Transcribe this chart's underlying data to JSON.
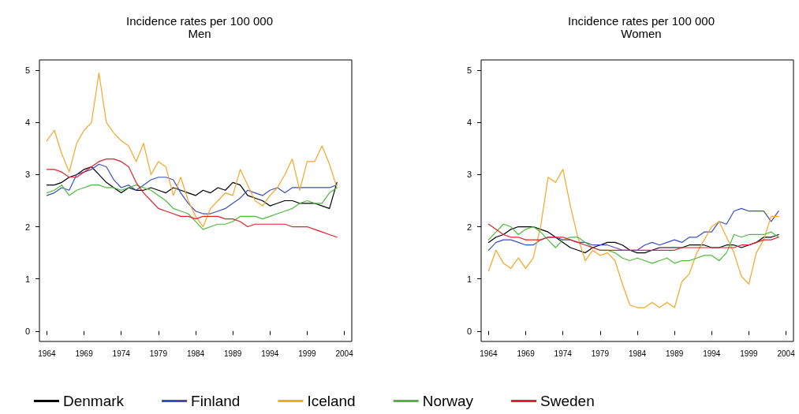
{
  "chart_data": [
    {
      "type": "line",
      "title": "Incidence rates per 100 000",
      "subtitle": "Men",
      "x": [
        1964,
        1965,
        1966,
        1967,
        1968,
        1969,
        1970,
        1971,
        1972,
        1973,
        1974,
        1975,
        1976,
        1977,
        1978,
        1979,
        1980,
        1981,
        1982,
        1983,
        1984,
        1985,
        1986,
        1987,
        1988,
        1989,
        1990,
        1991,
        1992,
        1993,
        1994,
        1995,
        1996,
        1997,
        1998,
        1999,
        2000,
        2001,
        2002,
        2003
      ],
      "xlim": [
        1963,
        2005
      ],
      "xticks": [
        1964,
        1969,
        1974,
        1979,
        1984,
        1989,
        1994,
        1999,
        2004
      ],
      "ylim": [
        -0.2,
        5.2
      ],
      "yticks": [
        0,
        1,
        2,
        3,
        4,
        5
      ],
      "grid": false,
      "marker": "none",
      "line_style": "solid",
      "legend": "bottom",
      "series": [
        {
          "name": "Denmark",
          "color": "#000000",
          "values": [
            2.8,
            2.8,
            2.85,
            2.95,
            3.0,
            3.1,
            3.15,
            3.0,
            2.85,
            2.75,
            2.65,
            2.75,
            2.7,
            2.7,
            2.75,
            2.7,
            2.65,
            2.75,
            2.7,
            2.65,
            2.6,
            2.7,
            2.65,
            2.75,
            2.7,
            2.85,
            2.8,
            2.6,
            2.55,
            2.5,
            2.4,
            2.45,
            2.5,
            2.5,
            2.45,
            2.45,
            2.45,
            2.4,
            2.35,
            2.85
          ]
        },
        {
          "name": "Finland",
          "color": "#3a4fbf",
          "values": [
            2.6,
            2.65,
            2.75,
            2.7,
            3.0,
            3.05,
            3.1,
            3.2,
            3.15,
            2.9,
            2.75,
            2.8,
            2.7,
            2.8,
            2.9,
            2.95,
            2.95,
            2.9,
            2.65,
            2.45,
            2.3,
            2.25,
            2.25,
            2.3,
            2.35,
            2.45,
            2.55,
            2.7,
            2.65,
            2.6,
            2.7,
            2.75,
            2.65,
            2.75,
            2.75,
            2.75,
            2.75,
            2.75,
            2.75,
            2.8
          ]
        },
        {
          "name": "Iceland",
          "color": "#f5a623",
          "values": [
            3.65,
            3.85,
            3.4,
            3.05,
            3.6,
            3.85,
            4.0,
            4.95,
            4.0,
            3.8,
            3.65,
            3.55,
            3.25,
            3.6,
            3.0,
            3.25,
            3.15,
            2.6,
            2.95,
            2.5,
            2.2,
            2.0,
            2.35,
            2.5,
            2.65,
            2.6,
            3.1,
            2.8,
            2.5,
            2.4,
            2.6,
            2.75,
            3.0,
            3.3,
            2.7,
            3.25,
            3.25,
            3.55,
            3.2,
            2.75
          ]
        },
        {
          "name": "Norway",
          "color": "#4cbb3a",
          "values": [
            2.65,
            2.7,
            2.8,
            2.6,
            2.7,
            2.75,
            2.8,
            2.8,
            2.75,
            2.75,
            2.7,
            2.75,
            2.8,
            2.75,
            2.7,
            2.6,
            2.5,
            2.35,
            2.3,
            2.25,
            2.1,
            1.95,
            2.0,
            2.05,
            2.05,
            2.1,
            2.2,
            2.2,
            2.2,
            2.15,
            2.2,
            2.25,
            2.3,
            2.35,
            2.45,
            2.5,
            2.45,
            2.45,
            2.65,
            2.75
          ]
        },
        {
          "name": "Sweden",
          "color": "#e8202a",
          "values": [
            3.1,
            3.1,
            3.05,
            2.95,
            2.95,
            3.05,
            3.15,
            3.25,
            3.3,
            3.3,
            3.25,
            3.15,
            2.85,
            2.65,
            2.5,
            2.35,
            2.3,
            2.25,
            2.2,
            2.2,
            2.15,
            2.2,
            2.2,
            2.2,
            2.15,
            2.15,
            2.1,
            2.0,
            2.05,
            2.05,
            2.05,
            2.05,
            2.05,
            2.0,
            2.0,
            2.0,
            1.95,
            1.9,
            1.85,
            1.8
          ]
        }
      ]
    },
    {
      "type": "line",
      "title": "Incidence rates per 100 000",
      "subtitle": "Women",
      "x": [
        1964,
        1965,
        1966,
        1967,
        1968,
        1969,
        1970,
        1971,
        1972,
        1973,
        1974,
        1975,
        1976,
        1977,
        1978,
        1979,
        1980,
        1981,
        1982,
        1983,
        1984,
        1985,
        1986,
        1987,
        1988,
        1989,
        1990,
        1991,
        1992,
        1993,
        1994,
        1995,
        1996,
        1997,
        1998,
        1999,
        2000,
        2001,
        2002,
        2003
      ],
      "xlim": [
        1963,
        2005
      ],
      "xticks": [
        1964,
        1969,
        1974,
        1979,
        1984,
        1989,
        1994,
        1999,
        2004
      ],
      "ylim": [
        -0.2,
        5.2
      ],
      "yticks": [
        0,
        1,
        2,
        3,
        4,
        5
      ],
      "grid": false,
      "marker": "none",
      "line_style": "solid",
      "series": [
        {
          "color": "#000000",
          "values": [
            1.7,
            1.8,
            1.85,
            1.95,
            2.0,
            2.0,
            2.0,
            1.95,
            1.9,
            1.8,
            1.7,
            1.6,
            1.55,
            1.5,
            1.6,
            1.65,
            1.7,
            1.7,
            1.65,
            1.55,
            1.5,
            1.5,
            1.55,
            1.6,
            1.6,
            1.6,
            1.6,
            1.65,
            1.65,
            1.65,
            1.6,
            1.6,
            1.65,
            1.65,
            1.6,
            1.65,
            1.7,
            1.8,
            1.8,
            1.85
          ]
        },
        {
          "color": "#3a4fbf",
          "values": [
            1.55,
            1.7,
            1.75,
            1.75,
            1.7,
            1.65,
            1.65,
            1.75,
            1.8,
            1.8,
            1.75,
            1.75,
            1.7,
            1.7,
            1.65,
            1.65,
            1.65,
            1.6,
            1.55,
            1.55,
            1.55,
            1.65,
            1.7,
            1.65,
            1.7,
            1.75,
            1.7,
            1.8,
            1.8,
            1.9,
            1.9,
            2.1,
            2.05,
            2.3,
            2.35,
            2.3,
            2.3,
            2.3,
            2.1,
            2.3
          ]
        },
        {
          "color": "#f5a623",
          "values": [
            1.15,
            1.55,
            1.3,
            1.2,
            1.4,
            1.2,
            1.4,
            2.0,
            2.95,
            2.85,
            3.1,
            2.4,
            1.8,
            1.35,
            1.55,
            1.45,
            1.5,
            1.35,
            0.9,
            0.5,
            0.45,
            0.45,
            0.55,
            0.45,
            0.55,
            0.45,
            0.95,
            1.1,
            1.5,
            1.75,
            2.0,
            2.1,
            1.8,
            1.5,
            1.05,
            0.9,
            1.5,
            1.75,
            2.2,
            2.2
          ]
        },
        {
          "color": "#4cbb3a",
          "values": [
            1.75,
            1.9,
            2.05,
            2.0,
            1.85,
            1.95,
            2.0,
            1.9,
            1.75,
            1.6,
            1.75,
            1.8,
            1.8,
            1.7,
            1.6,
            1.55,
            1.55,
            1.5,
            1.4,
            1.35,
            1.4,
            1.35,
            1.3,
            1.35,
            1.4,
            1.3,
            1.35,
            1.35,
            1.4,
            1.45,
            1.45,
            1.35,
            1.5,
            1.85,
            1.8,
            1.85,
            1.85,
            1.85,
            1.9,
            1.8
          ]
        },
        {
          "color": "#e8202a",
          "values": [
            2.05,
            1.95,
            1.85,
            1.8,
            1.8,
            1.75,
            1.75,
            1.75,
            1.8,
            1.8,
            1.8,
            1.75,
            1.7,
            1.65,
            1.6,
            1.55,
            1.55,
            1.55,
            1.55,
            1.55,
            1.55,
            1.55,
            1.55,
            1.55,
            1.55,
            1.55,
            1.6,
            1.6,
            1.6,
            1.6,
            1.6,
            1.6,
            1.6,
            1.6,
            1.65,
            1.65,
            1.7,
            1.75,
            1.75,
            1.8
          ]
        }
      ]
    }
  ]
}
